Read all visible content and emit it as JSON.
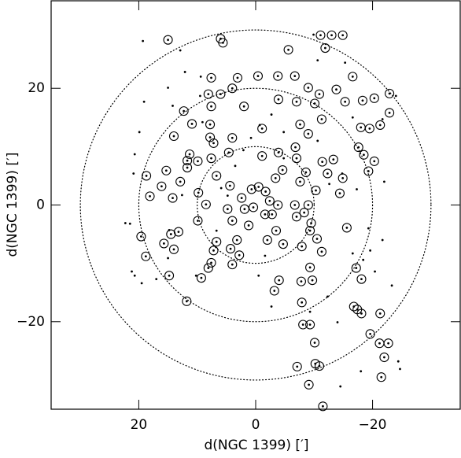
{
  "chart_data": {
    "type": "scatter",
    "x_label": "d(NGC 1399) [′]",
    "y_label": "d(NGC 1399) [′]",
    "xlim": [
      35,
      -35
    ],
    "ylim": [
      -35,
      35
    ],
    "xticks": [
      20,
      0,
      {
        "value": -20,
        "label": "−20"
      }
    ],
    "yticks": [
      {
        "value": -20,
        "label": "−20"
      },
      0,
      20
    ],
    "reference_circles": [
      10,
      20,
      30
    ],
    "series": [
      {
        "marker": "dot",
        "color": "#000000",
        "x": [
          19.3,
          19.1,
          19.9,
          20.7,
          20.9,
          21.5,
          21.2,
          20.7,
          19.5,
          17.0,
          15.0,
          12.1,
          14.2,
          12.9,
          9.4,
          9.1,
          12.6,
          14.8,
          15.0,
          10.2,
          6.7,
          4.8,
          0.8,
          -0.7,
          -2.7,
          -4.8,
          -10.6,
          -12.6,
          -14.8,
          -17.3,
          -19.3,
          -19.6,
          -18.4,
          -20.4,
          -23.3,
          -24.4,
          -24.7,
          -18.0,
          -14.5,
          -12.3,
          -14.0,
          -9.3,
          -1.6,
          -0.5,
          -16.6,
          -21.7,
          -24.0,
          -10.6,
          -9.9,
          -15.3,
          -4.8,
          3.5,
          2.1,
          9.5,
          -22.0,
          -21.7,
          -16.6,
          22.3,
          5.9,
          -2.7
        ],
        "y": [
          28.1,
          17.7,
          12.5,
          8.7,
          5.4,
          -3.2,
          -11.4,
          -12.1,
          -13.4,
          -12.7,
          20.1,
          22.8,
          17.0,
          26.5,
          22.0,
          14.2,
          1.7,
          -4.3,
          -9.1,
          -12.1,
          -4.4,
          1.6,
          11.5,
          13.7,
          15.5,
          12.5,
          11.0,
          3.6,
          5.4,
          2.7,
          -4.0,
          -7.8,
          -9.4,
          -11.4,
          -13.8,
          -26.8,
          -28.1,
          -28.5,
          -31.1,
          -15.7,
          -20.1,
          -18.3,
          -8.7,
          -12.1,
          15.0,
          14.7,
          18.7,
          24.8,
          29.2,
          24.4,
          8.0,
          6.7,
          9.4,
          18.7,
          4.0,
          -6.0,
          -8.3,
          -3.1,
          2.9,
          -17.4
        ]
      },
      {
        "marker": "circled-dot",
        "color": "#000000",
        "x": [
          15.0,
          6.0,
          5.6,
          -11.1,
          -13.0,
          -14.9,
          -11.9,
          -5.6,
          7.6,
          3.1,
          -0.4,
          -3.8,
          -6.7,
          4.0,
          8.1,
          6.0,
          7.6,
          2.0,
          -3.9,
          -10.1,
          -7.0,
          -9.0,
          -10.9,
          -13.8,
          -16.6,
          -18.3,
          -20.3,
          -22.9,
          -15.3,
          12.3,
          10.9,
          7.8,
          14.0,
          7.8,
          -1.1,
          -7.6,
          -11.3,
          -9.0,
          -18.0,
          -19.5,
          -21.3,
          -22.9,
          11.3,
          7.2,
          4.0,
          11.7,
          11.7,
          9.9,
          7.6,
          4.6,
          -1.1,
          -3.9,
          -4.6,
          -6.8,
          -7.0,
          -8.6,
          -11.4,
          -13.3,
          -17.6,
          -18.5,
          -19.3,
          -20.3,
          18.7,
          15.3,
          12.9,
          18.1,
          16.1,
          14.2,
          9.8,
          6.7,
          4.4,
          2.4,
          0.7,
          -0.5,
          -3.4,
          -1.7,
          -7.6,
          -10.3,
          -12.3,
          -14.4,
          19.6,
          18.8,
          15.7,
          14.5,
          14.0,
          13.2,
          14.8,
          11.8,
          9.3,
          8.1,
          7.2,
          7.6,
          4.0,
          6.7,
          4.3,
          3.2,
          2.8,
          1.2,
          -2.0,
          -3.5,
          -4.7,
          -7.9,
          -10.5,
          -9.3,
          -11.3,
          -8.3,
          -6.7,
          -9.0,
          -1.6,
          4.0,
          4.8,
          1.9,
          0.4,
          -2.4,
          -3.8,
          -7.0,
          -9.5,
          8.5,
          9.9,
          -2.8,
          -4.0,
          -3.2,
          -7.8,
          -9.3,
          -9.7,
          -7.9,
          -8.1,
          -9.3,
          -10.1,
          -17.2,
          -18.1,
          -16.8,
          -17.4,
          -18.1,
          -21.3,
          -22.7,
          -21.2,
          -22.0,
          -19.6,
          -10.2,
          -10.9,
          -7.1,
          -9.1,
          -11.5,
          -21.5,
          -15.6,
          -14.9
        ],
        "y": [
          28.3,
          28.5,
          27.8,
          29.1,
          29.1,
          29.1,
          26.9,
          26.6,
          21.8,
          21.8,
          22.1,
          22.1,
          22.1,
          20.0,
          19.0,
          19.0,
          16.9,
          16.9,
          18.1,
          17.4,
          17.7,
          20.1,
          19.0,
          19.8,
          22.0,
          17.9,
          18.3,
          19.1,
          17.7,
          16.1,
          13.9,
          13.8,
          11.8,
          11.6,
          13.1,
          13.8,
          14.7,
          12.2,
          13.3,
          13.1,
          13.7,
          15.8,
          8.7,
          10.6,
          11.5,
          7.6,
          6.4,
          7.5,
          8.0,
          9.0,
          8.4,
          9.0,
          6.0,
          9.9,
          8.0,
          5.6,
          7.4,
          7.8,
          9.9,
          8.6,
          5.8,
          7.5,
          5.0,
          5.9,
          4.0,
          1.5,
          3.2,
          1.2,
          2.1,
          5.0,
          3.3,
          1.2,
          2.7,
          3.1,
          4.6,
          2.3,
          4.0,
          2.5,
          5.4,
          2.0,
          -5.4,
          -8.8,
          -6.6,
          -5.0,
          -7.6,
          -4.6,
          -12.1,
          -16.5,
          -12.5,
          -10.8,
          -7.8,
          -9.9,
          -10.2,
          -6.3,
          -7.5,
          -6.0,
          -8.6,
          -3.5,
          -6.0,
          -4.4,
          -6.7,
          -7.1,
          -5.8,
          -4.4,
          -8.0,
          -1.3,
          0,
          0,
          -1.6,
          -2.7,
          -0.7,
          -0.7,
          -0.4,
          0.7,
          0,
          -2.0,
          -3.1,
          0.1,
          -2.7,
          -1.6,
          -12.9,
          -14.7,
          -13.1,
          -10.7,
          -12.9,
          -16.7,
          -20.5,
          -20.5,
          -23.6,
          -10.8,
          -12.7,
          -17.4,
          -17.9,
          -18.6,
          -18.6,
          -23.7,
          -23.7,
          -26.1,
          -22.1,
          -27.2,
          -27.6,
          -27.7,
          -30.8,
          -34.5,
          -29.5,
          -3.9,
          4.6
        ]
      }
    ]
  }
}
